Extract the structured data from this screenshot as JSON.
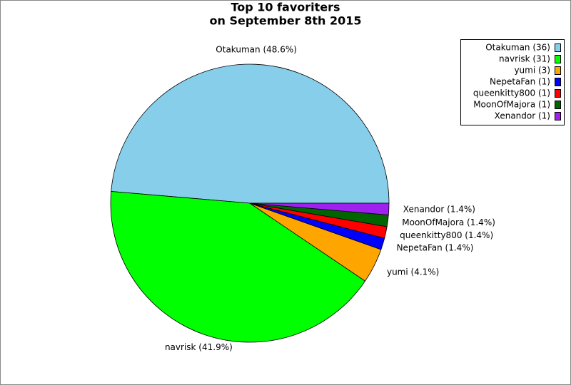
{
  "chart_data": {
    "type": "pie",
    "title": "Top 10 favoriters",
    "subtitle": "on September 8th 2015",
    "categories": [
      "Otakuman",
      "navrisk",
      "yumi",
      "NepetaFan",
      "queenkitty800",
      "MoonOfMajora",
      "Xenandor"
    ],
    "values": [
      36,
      31,
      3,
      1,
      1,
      1,
      1
    ],
    "value_labels": [
      "Otakuman (48.6%)",
      "navrisk (41.9%)",
      "yumi (4.1%)",
      "NepetaFan (1.4%)",
      "queenkitty800 (1.4%)",
      "MoonOfMajora (1.4%)",
      "Xenandor (1.4%)"
    ],
    "legend_labels": [
      "Otakuman (36)",
      "navrisk (31)",
      "yumi (3)",
      "NepetaFan (1)",
      "queenkitty800 (1)",
      "MoonOfMajora (1)",
      "Xenandor (1)"
    ],
    "colors": [
      "#87ceeb",
      "#00ff00",
      "#ffa500",
      "#0000ff",
      "#ff0000",
      "#006400",
      "#a020f0"
    ],
    "legend": "top-right"
  }
}
